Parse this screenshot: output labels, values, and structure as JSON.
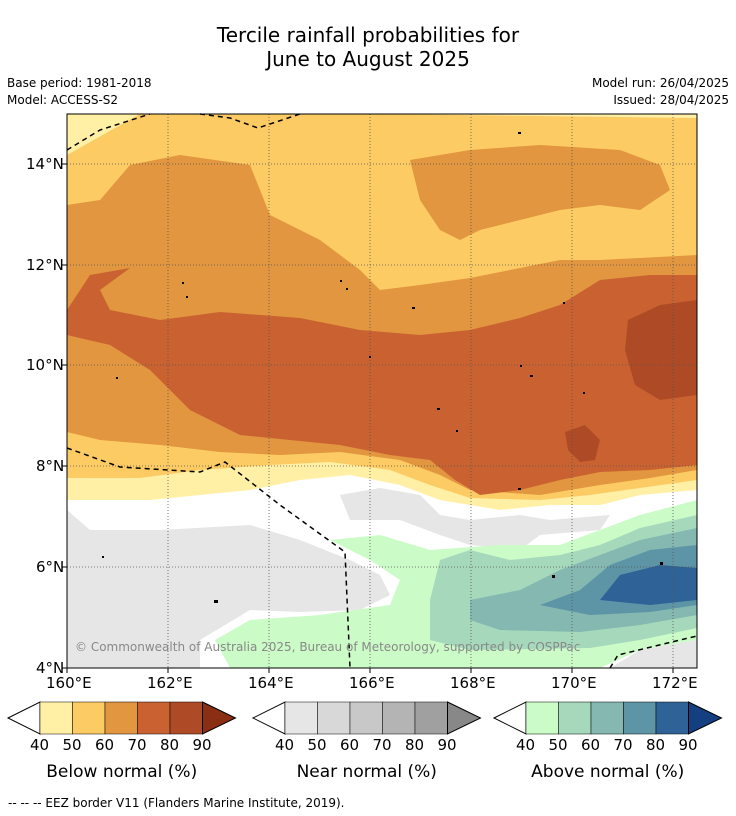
{
  "title_line1": "Tercile rainfall probabilities for",
  "title_line2": "June to August 2025",
  "base_period": "Base period: 1981-2018",
  "model": "Model: ACCESS-S2",
  "model_run": "Model run: 26/04/2025",
  "issued": "Issued: 28/04/2025",
  "copyright": "© Commonwealth of Australia 2025, Bureau of Meteorology, supported by COSPPac",
  "footer": "-- -- -- EEZ border V11 (Flanders Marine Institute, 2019).",
  "lat_labels": [
    "14°N",
    "12°N",
    "10°N",
    "8°N",
    "6°N",
    "4°N"
  ],
  "lon_labels": [
    "160°E",
    "162°E",
    "164°E",
    "166°E",
    "168°E",
    "170°E",
    "172°E"
  ],
  "colorbars": [
    {
      "label": "Below normal (%)",
      "ticks": [
        "40",
        "50",
        "60",
        "70",
        "80",
        "90"
      ],
      "colors": [
        "#fff0a6",
        "#fdcb63",
        "#e1963f",
        "#c96230",
        "#af4a26",
        "#8a2e14"
      ]
    },
    {
      "label": "Near normal (%)",
      "ticks": [
        "40",
        "50",
        "60",
        "70",
        "80",
        "90"
      ],
      "colors": [
        "#e6e6e6",
        "#d8d8d8",
        "#c8c8c8",
        "#b4b4b4",
        "#a0a0a0",
        "#888888"
      ]
    },
    {
      "label": "Above normal (%)",
      "ticks": [
        "40",
        "50",
        "60",
        "70",
        "80",
        "90"
      ],
      "colors": [
        "#cbfbc7",
        "#a6d9bb",
        "#84b8b0",
        "#5d95a6",
        "#2f6296",
        "#143f80"
      ]
    }
  ],
  "colors": {
    "below_40": "#fff0a6",
    "below_50": "#fdcb63",
    "below_60": "#e1963f",
    "below_70": "#c96230",
    "below_80": "#af4a26",
    "near_40": "#e6e6e6",
    "above_40": "#cbfbc7",
    "above_50": "#a6d9bb",
    "above_60": "#84b8b0",
    "above_70": "#5d95a6",
    "above_80": "#2f6296"
  }
}
